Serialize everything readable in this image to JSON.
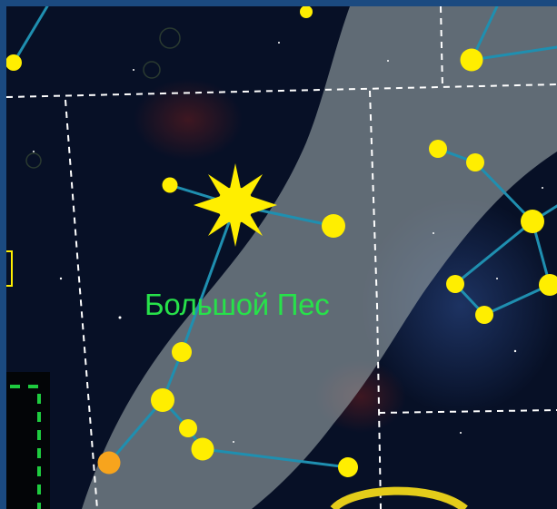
{
  "map": {
    "constellation_label": "Большой Пес",
    "label_color": "#27e14a",
    "star_color": "#ffee00",
    "orange_star_color": "#f7a41d",
    "line_color": "#1f8fb0",
    "milky_way_color": "#9aa6a9",
    "boundary_color": "#ffffff",
    "background_color": "#071026",
    "frame_color": "#1b4a80"
  }
}
